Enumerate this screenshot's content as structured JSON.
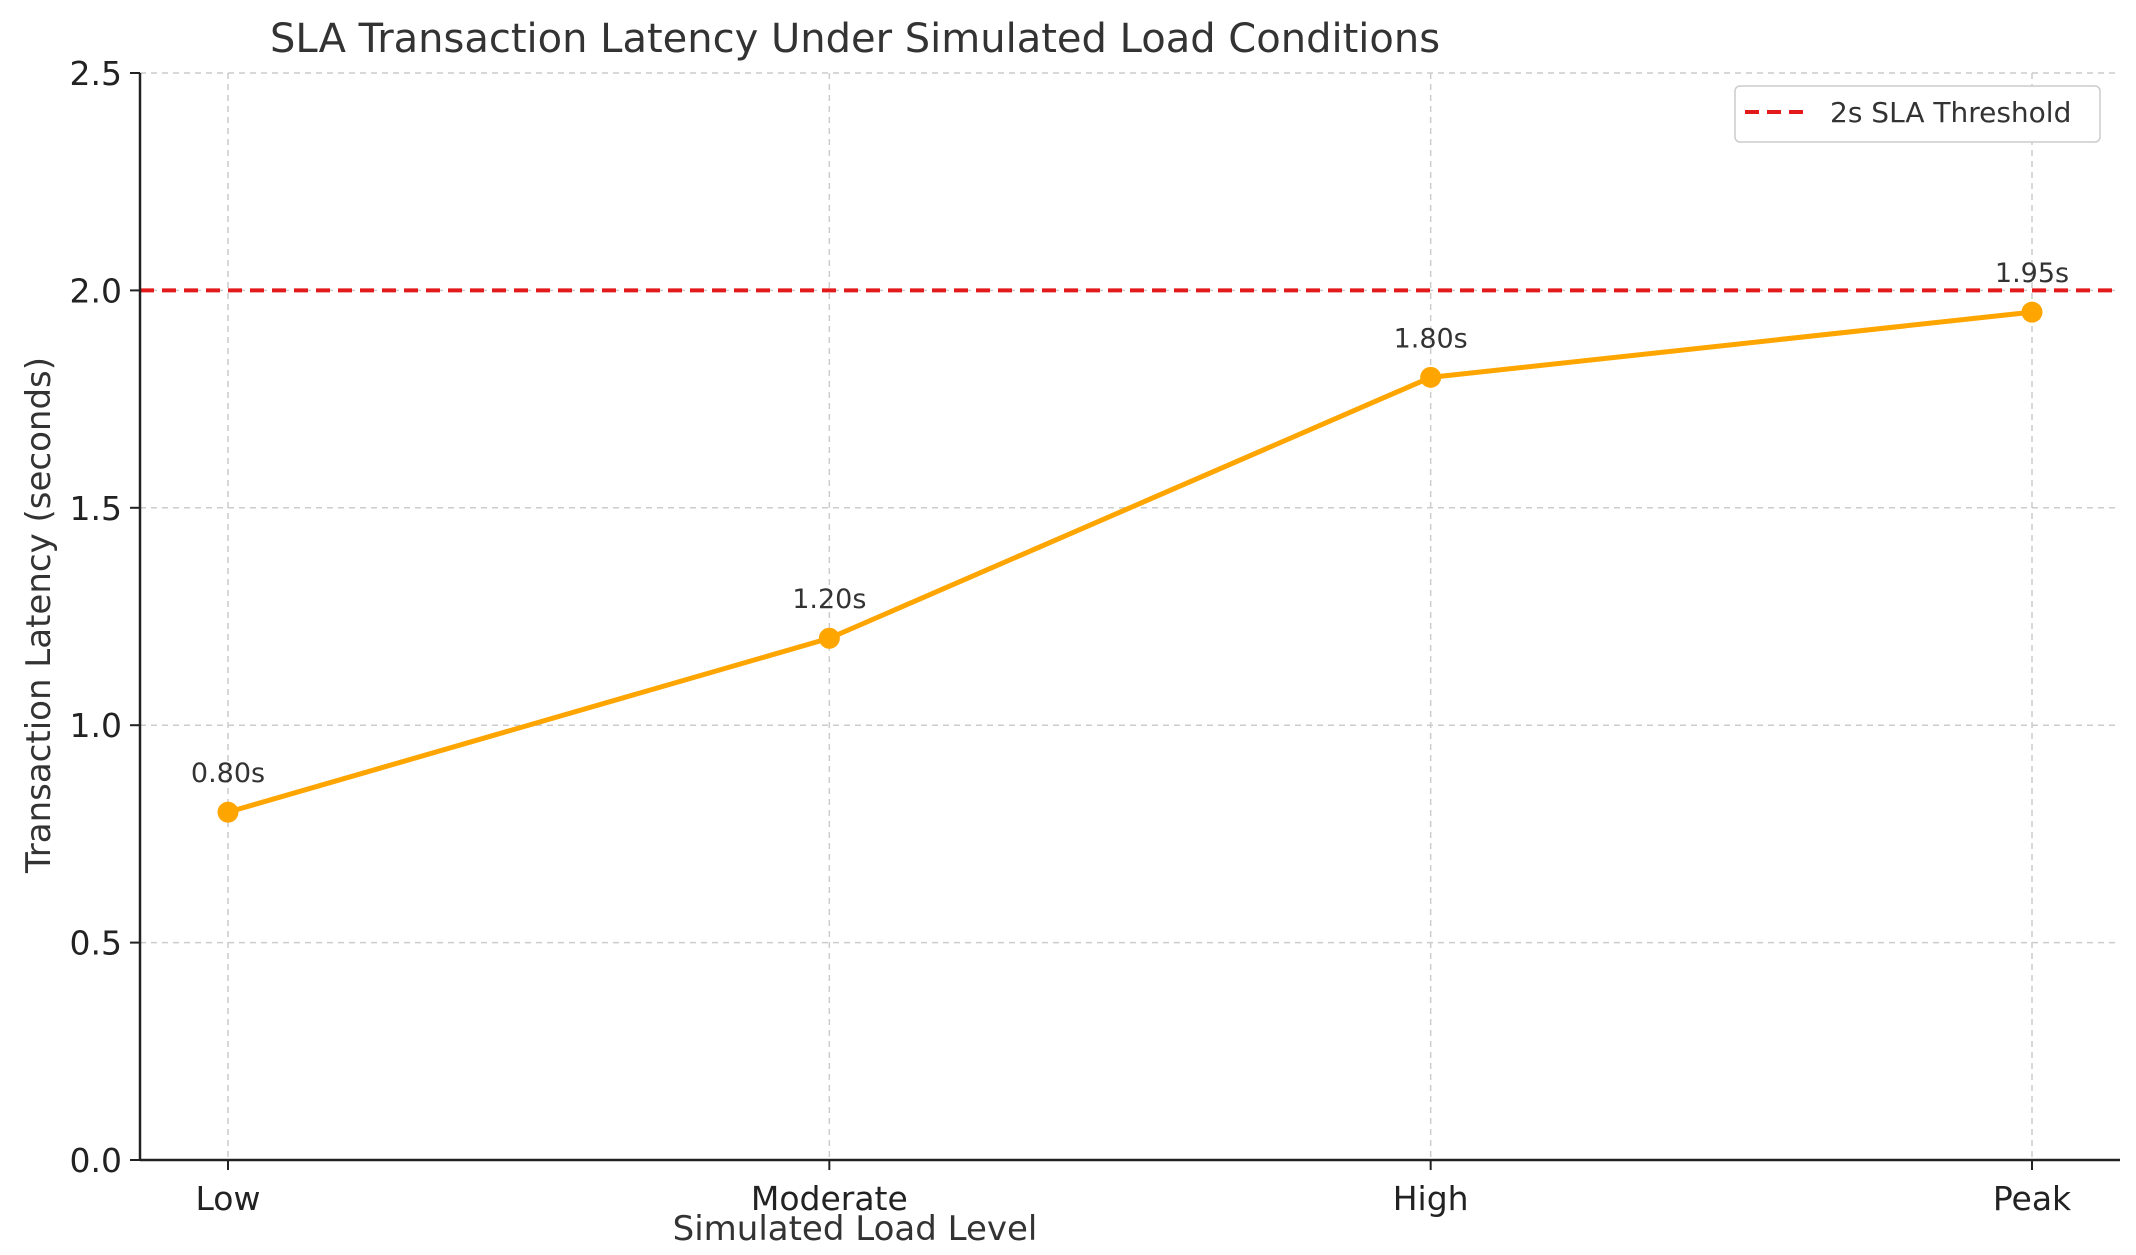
{
  "chart_data": {
    "type": "line",
    "title": "SLA Transaction Latency Under Simulated Load Conditions",
    "xlabel": "Simulated Load Level",
    "ylabel": "Transaction Latency (seconds)",
    "categories": [
      "Low",
      "Moderate",
      "High",
      "Peak"
    ],
    "series": [
      {
        "name": "Transaction Latency",
        "values": [
          0.8,
          1.2,
          1.8,
          1.95
        ],
        "labels": [
          "0.80s",
          "1.20s",
          "1.80s",
          "1.95s"
        ],
        "color": "#FFA500"
      }
    ],
    "threshold": {
      "name": "2s SLA Threshold",
      "value": 2.0,
      "color": "#E31A1C",
      "style": "dashed"
    },
    "ylim": [
      0,
      2.5
    ],
    "yticks": [
      0.0,
      0.5,
      1.0,
      1.5,
      2.0,
      2.5
    ],
    "ytick_labels": [
      "0.0",
      "0.5",
      "1.0",
      "1.5",
      "2.0",
      "2.5"
    ],
    "grid": true,
    "legend": {
      "position": "top-right",
      "entries": [
        "2s SLA Threshold"
      ]
    }
  }
}
